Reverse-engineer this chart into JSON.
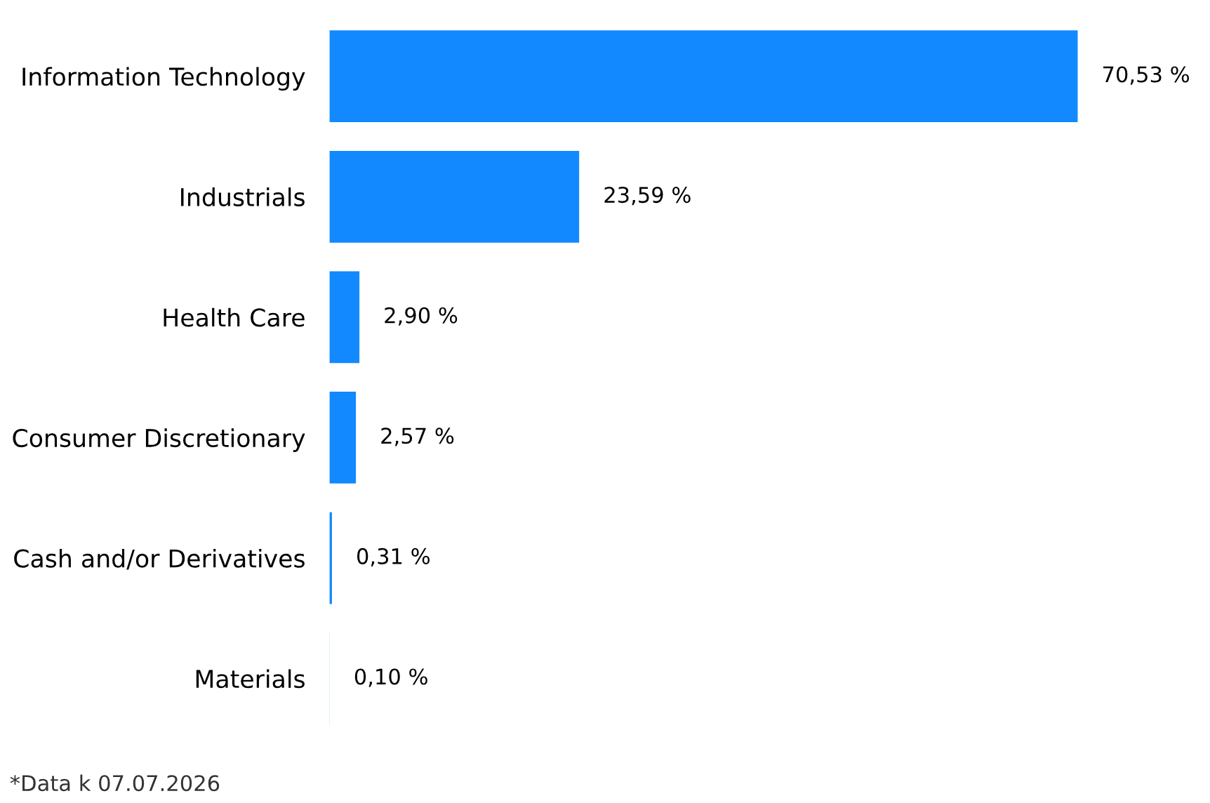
{
  "chart_data": {
    "type": "bar",
    "orientation": "horizontal",
    "categories": [
      "Information Technology",
      "Industrials",
      "Health Care",
      "Consumer Discretionary",
      "Cash and/or Derivatives",
      "Materials"
    ],
    "values": [
      70.53,
      23.59,
      2.9,
      2.57,
      0.31,
      0.1
    ],
    "value_labels": [
      "70,53 %",
      "23,59 %",
      "2,90 %",
      "2,57 %",
      "0,31 %",
      "0,10 %"
    ],
    "color": "#1289fe",
    "grid": false,
    "legend": false,
    "annotations": [
      "*Data k 07.07.2026"
    ]
  }
}
